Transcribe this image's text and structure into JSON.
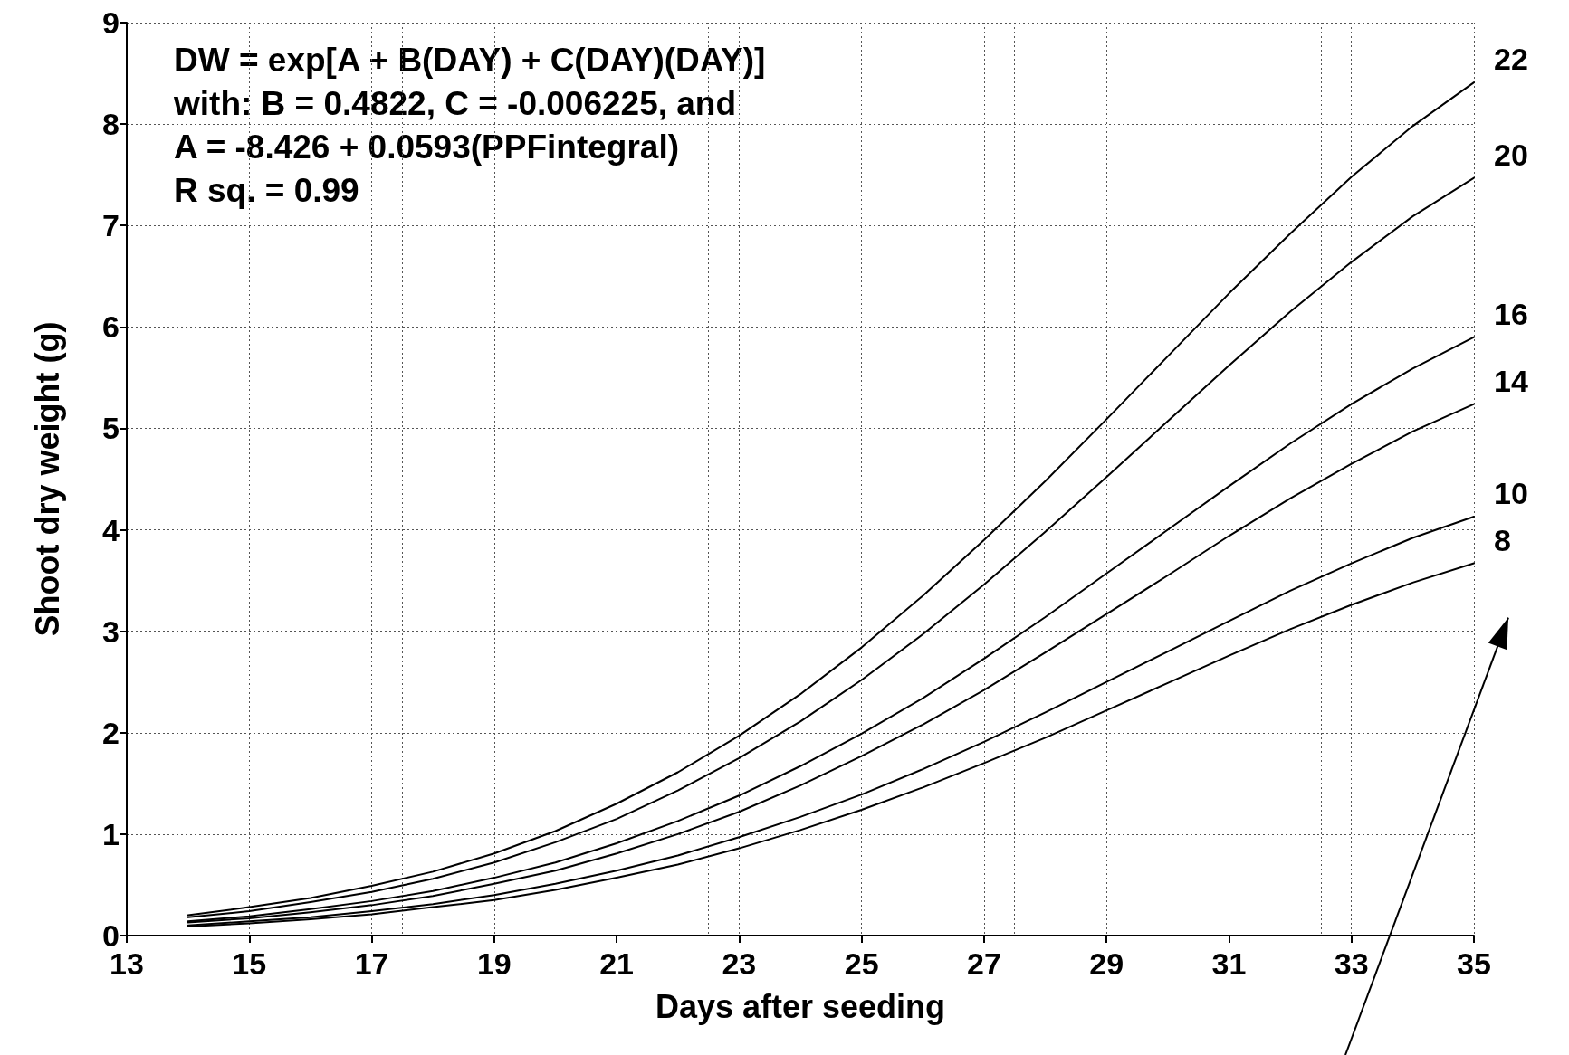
{
  "chart_data": {
    "type": "line",
    "xlabel": "Days after seeding",
    "ylabel": "Shoot dry weight (g)",
    "x": [
      14,
      15,
      16,
      17,
      18,
      19,
      20,
      21,
      22,
      23,
      24,
      25,
      26,
      27,
      28,
      29,
      30,
      31,
      32,
      33,
      34,
      35
    ],
    "series": [
      {
        "name": "22",
        "color": "#000000",
        "values": [
          0.2,
          0.28,
          0.37,
          0.49,
          0.63,
          0.81,
          1.03,
          1.3,
          1.61,
          1.97,
          2.38,
          2.84,
          3.35,
          3.9,
          4.48,
          5.09,
          5.71,
          6.33,
          6.92,
          7.48,
          7.98,
          8.41
        ]
      },
      {
        "name": "20",
        "color": "#000000",
        "values": [
          0.18,
          0.24,
          0.33,
          0.43,
          0.56,
          0.72,
          0.92,
          1.15,
          1.43,
          1.75,
          2.11,
          2.52,
          2.97,
          3.46,
          3.98,
          4.52,
          5.07,
          5.62,
          6.15,
          6.64,
          7.09,
          7.47
        ]
      },
      {
        "name": "16",
        "color": "#000000",
        "values": [
          0.14,
          0.19,
          0.26,
          0.34,
          0.44,
          0.57,
          0.72,
          0.91,
          1.13,
          1.38,
          1.67,
          1.99,
          2.34,
          2.73,
          3.14,
          3.57,
          4.0,
          4.43,
          4.85,
          5.24,
          5.59,
          5.9
        ]
      },
      {
        "name": "14",
        "color": "#000000",
        "values": [
          0.13,
          0.17,
          0.23,
          0.3,
          0.39,
          0.51,
          0.64,
          0.81,
          1.0,
          1.22,
          1.48,
          1.77,
          2.08,
          2.42,
          2.79,
          3.17,
          3.55,
          3.94,
          4.31,
          4.65,
          4.97,
          5.24
        ]
      },
      {
        "name": "10",
        "color": "#000000",
        "values": [
          0.1,
          0.14,
          0.18,
          0.24,
          0.31,
          0.4,
          0.51,
          0.64,
          0.79,
          0.97,
          1.17,
          1.39,
          1.64,
          1.91,
          2.2,
          2.5,
          2.8,
          3.1,
          3.4,
          3.67,
          3.92,
          4.13
        ]
      },
      {
        "name": "8",
        "color": "#000000",
        "values": [
          0.09,
          0.12,
          0.16,
          0.21,
          0.28,
          0.35,
          0.45,
          0.57,
          0.7,
          0.86,
          1.04,
          1.24,
          1.46,
          1.7,
          1.95,
          2.22,
          2.49,
          2.76,
          3.02,
          3.26,
          3.48,
          3.67
        ]
      }
    ],
    "annotations": [
      "DW = exp[A + B(DAY) + C(DAY)(DAY)]",
      "with: B = 0.4822, C = -0.006225, and",
      "A = -8.426 + 0.0593(PPFintegral)",
      "R sq. = 0.99"
    ],
    "xlim": [
      13,
      35
    ],
    "xticks": [
      13,
      15,
      17,
      19,
      21,
      23,
      25,
      27,
      29,
      31,
      33,
      35
    ],
    "ylim": [
      0,
      9
    ],
    "yticks": [
      0,
      1,
      2,
      3,
      4,
      5,
      6,
      7,
      8,
      9
    ],
    "grid": true,
    "marker": "none",
    "line_style": "solid",
    "legend": false
  }
}
